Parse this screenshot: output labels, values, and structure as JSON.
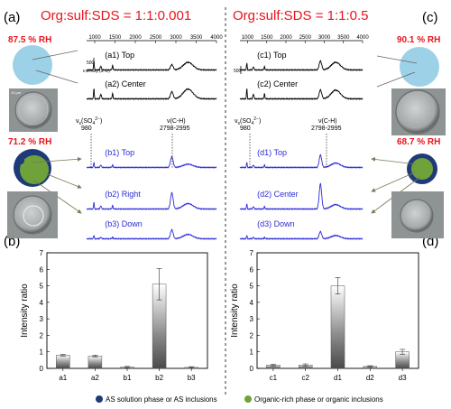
{
  "figure": {
    "panel_labels": [
      "(a)",
      "(b)",
      "(c)",
      "(d)"
    ],
    "left_title": "Org:sulf:SDS = 1:1:0.001",
    "right_title": "Org:sulf:SDS = 1:1:0.5",
    "title_color": "#e8141b",
    "rh": {
      "a_top": "87.5 % RH",
      "a_bottom": "71.2 % RH",
      "c_top": "90.1 % RH",
      "c_bottom": "68.7 % RH"
    },
    "scale_bar": "10 μm",
    "spectra": {
      "x_ticks": [
        "1000",
        "1500",
        "2000",
        "2500",
        "3000",
        "3500",
        "4000"
      ],
      "scale_label": "500",
      "intensity_label": "Intensity (a. u.)",
      "sulfate_label": "ν_s(SO₄²⁻)",
      "sulfate_label_parts": {
        "nu": "ν",
        "sub": "s",
        "rest": "(SO",
        "sub4": "4",
        "sup": "2−",
        "end": ")"
      },
      "sulfate_value": "980",
      "ch_label": "ν(C-H)",
      "ch_range": "2798-2995",
      "left_traces": [
        {
          "label": "(a1) Top",
          "color": "#000000"
        },
        {
          "label": "(a2) Center",
          "color": "#000000"
        },
        {
          "label": "(b1) Top",
          "color": "#2b2bd6"
        },
        {
          "label": "(b2) Right",
          "color": "#2b2bd6"
        },
        {
          "label": "(b3) Down",
          "color": "#2b2bd6"
        }
      ],
      "right_traces": [
        {
          "label": "(c1) Top",
          "color": "#000000"
        },
        {
          "label": "(c2) Center",
          "color": "#000000"
        },
        {
          "label": "(d1) Top",
          "color": "#2b2bd6"
        },
        {
          "label": "(d2) Center",
          "color": "#2b2bd6"
        },
        {
          "label": "(d3) Down",
          "color": "#2b2bd6"
        }
      ]
    },
    "legend": [
      {
        "label": "AS solution phase or AS inclusions",
        "color": "#1f3a78"
      },
      {
        "label": "Organic-rich phase or organic inclusions",
        "color": "#6fa23a"
      }
    ],
    "colors": {
      "particle_light": "#9dd1e8",
      "particle_dark": "#1f3a78",
      "organic": "#6fa23a",
      "trace_blue": "#2b2bd6"
    }
  },
  "chart_data": [
    {
      "type": "bar",
      "panel": "(b)",
      "categories": [
        "a1",
        "a2",
        "b1",
        "b2",
        "b3"
      ],
      "values": [
        0.8,
        0.75,
        0.08,
        5.1,
        0.06
      ],
      "errors": [
        0.05,
        0.05,
        0.04,
        0.95,
        0.04
      ],
      "ylabel": "Intensity ratio",
      "ylim": [
        0,
        7
      ],
      "yticks": [
        0,
        1,
        2,
        3,
        4,
        5,
        6,
        7
      ]
    },
    {
      "type": "bar",
      "panel": "(d)",
      "categories": [
        "c1",
        "c2",
        "d1",
        "d2",
        "d3"
      ],
      "values": [
        0.2,
        0.2,
        5.0,
        0.12,
        1.0
      ],
      "errors": [
        0.05,
        0.07,
        0.5,
        0.04,
        0.15
      ],
      "ylabel": "Intensity ratio",
      "ylim": [
        0,
        7
      ],
      "yticks": [
        0,
        1,
        2,
        3,
        4,
        5,
        6,
        7
      ]
    }
  ]
}
